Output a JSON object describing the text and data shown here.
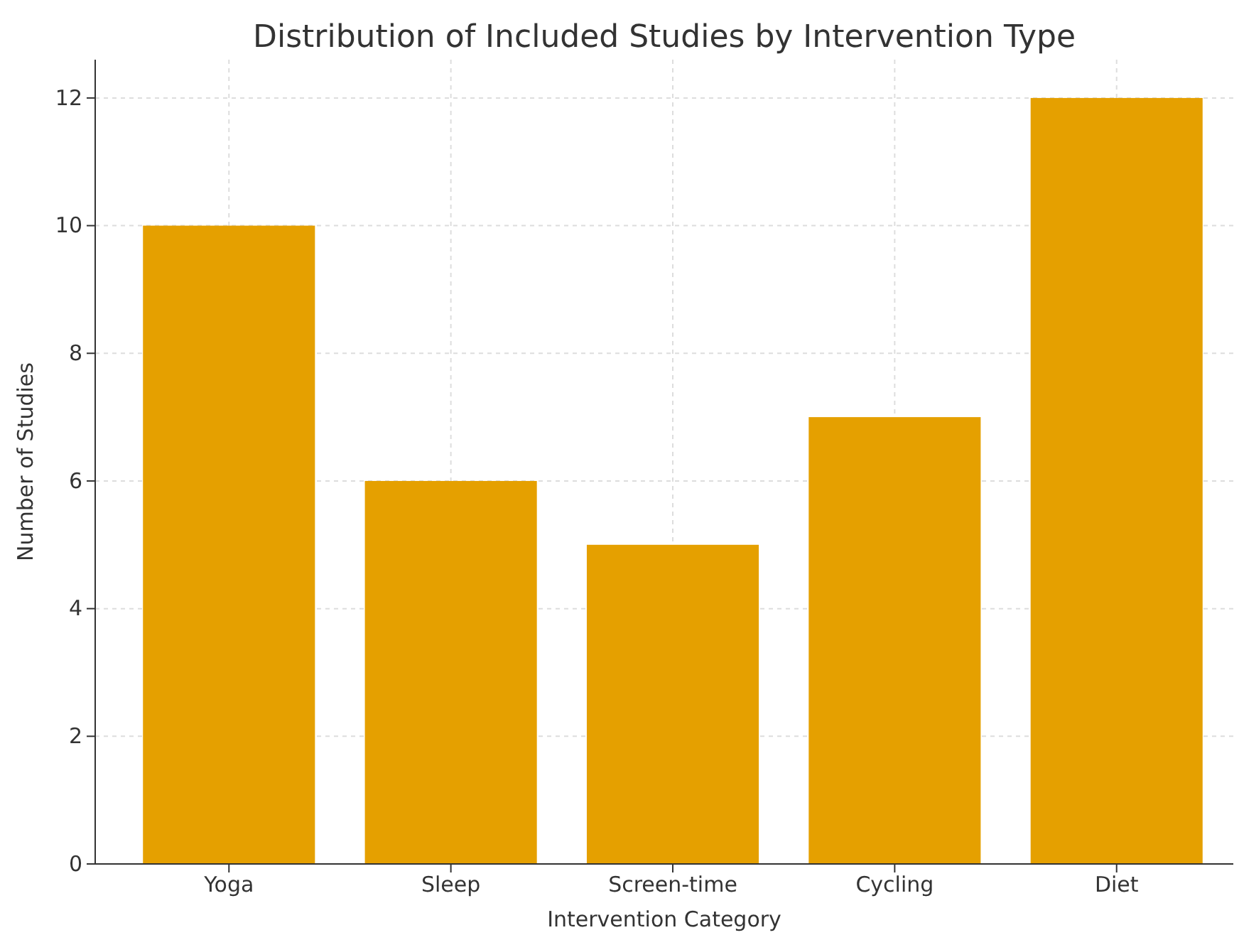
{
  "chart_data": {
    "type": "bar",
    "title": "Distribution of Included Studies by Intervention Type",
    "xlabel": "Intervention Category",
    "ylabel": "Number of Studies",
    "categories": [
      "Yoga",
      "Sleep",
      "Screen-time",
      "Cycling",
      "Diet"
    ],
    "values": [
      10,
      6,
      5,
      7,
      12
    ],
    "color": "#e5a000",
    "ylim": [
      0,
      12.6
    ],
    "yticks": [
      0,
      2,
      4,
      6,
      8,
      10,
      12
    ],
    "grid": true
  }
}
